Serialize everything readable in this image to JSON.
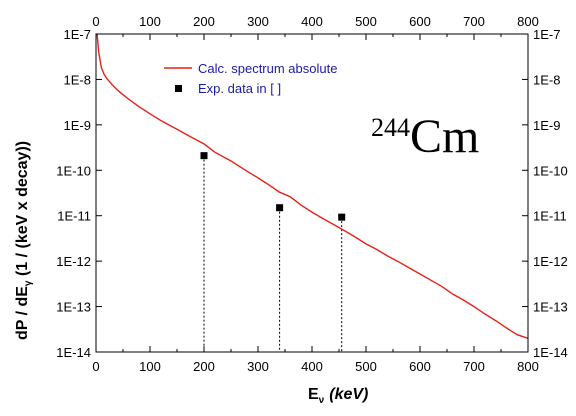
{
  "chart_data": {
    "type": "scatter",
    "title": "",
    "annotation": {
      "mass_number": "244",
      "element": "Cm"
    },
    "xlabel": {
      "main": "E",
      "sub": "ν",
      "unit": "(keV)"
    },
    "ylabel": {
      "pre": "dP / dE",
      "sub": "γ",
      "post": " (1 / (keV x decay))"
    },
    "xlim": [
      0,
      800
    ],
    "ylim": [
      1e-14,
      1e-07
    ],
    "yscale": "log",
    "x_ticks": [
      0,
      100,
      200,
      300,
      400,
      500,
      600,
      700,
      800
    ],
    "x_tick_labels": [
      "0",
      "100",
      "200",
      "300",
      "400",
      "500",
      "600",
      "700",
      "800"
    ],
    "y_ticks": [
      1e-07,
      1e-08,
      1e-09,
      1e-10,
      1e-11,
      1e-12,
      1e-13,
      1e-14
    ],
    "y_tick_labels": [
      "1E-7",
      "1E-8",
      "1E-9",
      "1E-10",
      "1E-11",
      "1E-12",
      "1E-13",
      "1E-14"
    ],
    "grid": false,
    "legend_position": "top-left",
    "series": [
      {
        "name": "Calc. spectrum absolute",
        "kind": "line",
        "color": "#e8201a",
        "x": [
          2,
          5,
          10,
          15,
          20,
          30,
          40,
          50,
          60,
          80,
          100,
          120,
          150,
          175,
          200,
          220,
          250,
          280,
          300,
          320,
          340,
          360,
          380,
          400,
          420,
          440,
          460,
          480,
          500,
          520,
          540,
          560,
          580,
          600,
          620,
          640,
          660,
          680,
          700,
          720,
          740,
          760,
          780,
          800
        ],
        "y": [
          1e-07,
          4e-08,
          1.8e-08,
          1.3e-08,
          1.05e-08,
          7.6e-09,
          5.8e-09,
          4.6e-09,
          3.7e-09,
          2.5e-09,
          1.75e-09,
          1.25e-09,
          8e-10,
          5.5e-10,
          3.8e-10,
          2.5e-10,
          1.6e-10,
          9.5e-11,
          6.8e-11,
          4.8e-11,
          3.3e-11,
          2.6e-11,
          1.7e-11,
          1.2e-11,
          8.7e-12,
          6.4e-12,
          4.7e-12,
          3.4e-12,
          2.4e-12,
          1.8e-12,
          1.3e-12,
          9.7e-13,
          7.1e-13,
          5.2e-13,
          3.8e-13,
          2.8e-13,
          1.9e-13,
          1.4e-13,
          1e-13,
          6.9e-14,
          4.9e-14,
          3.4e-14,
          2.4e-14,
          2e-14
        ]
      },
      {
        "name": "Exp. data in [ ]",
        "kind": "marker",
        "color": "#000000",
        "x": [
          200,
          340,
          455
        ],
        "y": [
          2.1e-10,
          1.5e-11,
          9.3e-12
        ]
      }
    ]
  }
}
